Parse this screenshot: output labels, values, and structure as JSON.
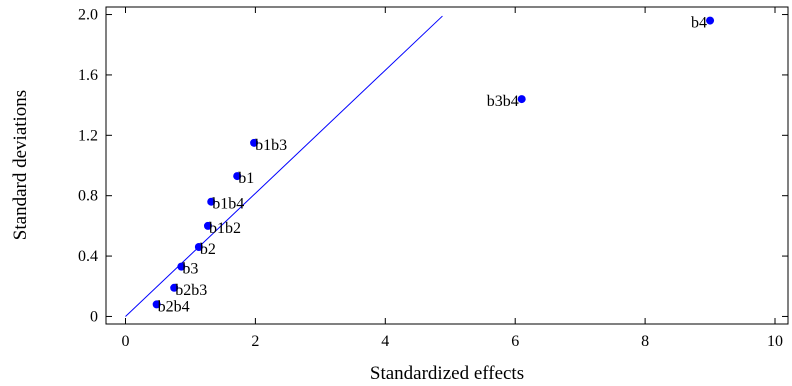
{
  "chart_data": {
    "type": "scatter",
    "xlabel": "Standardized effects",
    "ylabel": "Standard deviations",
    "xlim": [
      -0.3,
      10.2
    ],
    "ylim": [
      -0.05,
      2.05
    ],
    "x_ticks": [
      0,
      2,
      4,
      6,
      8,
      10
    ],
    "y_ticks": [
      0,
      0.4,
      0.8,
      1.2,
      1.6,
      2.0
    ],
    "x_tick_labels": [
      "0",
      "2",
      "4",
      "6",
      "8",
      "10"
    ],
    "y_tick_labels": [
      "0",
      "0.4",
      "0.8",
      "1.2",
      "1.6",
      "2.0"
    ],
    "grid": false,
    "point_color": "#0000ff",
    "line_color": "#0000ff",
    "points": [
      {
        "label": "b4",
        "x": 9.0,
        "y": 1.96,
        "label_side": "left"
      },
      {
        "label": "b3b4",
        "x": 6.1,
        "y": 1.44,
        "label_side": "left"
      },
      {
        "label": "b1b3",
        "x": 1.98,
        "y": 1.15,
        "label_side": "right"
      },
      {
        "label": "b1",
        "x": 1.72,
        "y": 0.93,
        "label_side": "right"
      },
      {
        "label": "b1b4",
        "x": 1.32,
        "y": 0.76,
        "label_side": "right"
      },
      {
        "label": "b1b2",
        "x": 1.27,
        "y": 0.6,
        "label_side": "right"
      },
      {
        "label": "b2",
        "x": 1.13,
        "y": 0.46,
        "label_side": "right"
      },
      {
        "label": "b3",
        "x": 0.86,
        "y": 0.33,
        "label_side": "right"
      },
      {
        "label": "b2b3",
        "x": 0.75,
        "y": 0.19,
        "label_side": "right"
      },
      {
        "label": "b2b4",
        "x": 0.48,
        "y": 0.08,
        "label_side": "right"
      }
    ],
    "reference_line": {
      "x": [
        0,
        4.88
      ],
      "y": [
        0,
        1.99
      ]
    }
  }
}
